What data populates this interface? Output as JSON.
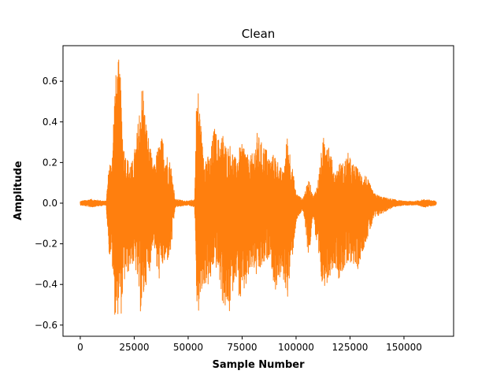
{
  "chart_data": {
    "type": "line",
    "title": "Clean",
    "xlabel": "Sample Number",
    "ylabel": "Amplitude",
    "xlim": [
      -8000,
      173000
    ],
    "ylim": [
      -0.655,
      0.775
    ],
    "xticks": [
      0,
      25000,
      50000,
      75000,
      100000,
      125000,
      150000
    ],
    "xtick_labels": [
      "0",
      "25000",
      "50000",
      "75000",
      "100000",
      "125000",
      "150000"
    ],
    "yticks": [
      -0.6,
      -0.4,
      -0.2,
      0.0,
      0.2,
      0.4,
      0.6
    ],
    "ytick_labels": [
      "−0.6",
      "−0.4",
      "−0.2",
      "0.0",
      "0.2",
      "0.4",
      "0.6"
    ],
    "grid": false,
    "legend": "none",
    "series": [
      {
        "color": "#ff7f0e",
        "x": [
          0,
          5000,
          12000,
          13500,
          14500,
          16000,
          17000,
          18000,
          19000,
          20000,
          21000,
          22000,
          24000,
          26000,
          28000,
          29000,
          30000,
          32000,
          34000,
          36000,
          38000,
          40000,
          42000,
          44000,
          50000,
          53000,
          54000,
          55000,
          56500,
          58000,
          60000,
          62000,
          64000,
          66000,
          68000,
          69000,
          70000,
          72000,
          74000,
          76000,
          78000,
          80000,
          82000,
          84000,
          86000,
          88000,
          90000,
          92000,
          94000,
          96000,
          98000,
          100000,
          103000,
          106000,
          108000,
          110000,
          112000,
          114000,
          116000,
          118000,
          120000,
          122000,
          124000,
          126000,
          128000,
          130000,
          132000,
          134000,
          136000,
          140000,
          145000,
          150000,
          155000,
          160000,
          165000
        ],
        "upper": [
          0.01,
          0.02,
          0.01,
          0.22,
          0.2,
          0.6,
          0.68,
          0.72,
          0.55,
          0.3,
          0.25,
          0.22,
          0.2,
          0.32,
          0.55,
          0.62,
          0.45,
          0.3,
          0.18,
          0.28,
          0.33,
          0.25,
          0.2,
          0.02,
          0.01,
          0.02,
          0.6,
          0.55,
          0.3,
          0.25,
          0.22,
          0.38,
          0.32,
          0.35,
          0.27,
          0.3,
          0.28,
          0.22,
          0.28,
          0.3,
          0.22,
          0.25,
          0.35,
          0.3,
          0.28,
          0.22,
          0.25,
          0.2,
          0.15,
          0.35,
          0.2,
          0.05,
          0.02,
          0.12,
          0.03,
          0.1,
          0.28,
          0.4,
          0.25,
          0.15,
          0.2,
          0.2,
          0.25,
          0.2,
          0.18,
          0.15,
          0.15,
          0.1,
          0.05,
          0.03,
          0.02,
          0.01,
          0.01,
          0.02,
          0.01
        ],
        "lower": [
          -0.01,
          -0.02,
          -0.01,
          -0.27,
          -0.25,
          -0.55,
          -0.59,
          -0.5,
          -0.55,
          -0.42,
          -0.37,
          -0.35,
          -0.3,
          -0.35,
          -0.55,
          -0.52,
          -0.42,
          -0.35,
          -0.18,
          -0.4,
          -0.32,
          -0.3,
          -0.25,
          -0.02,
          -0.01,
          -0.02,
          -0.53,
          -0.55,
          -0.45,
          -0.4,
          -0.42,
          -0.3,
          -0.35,
          -0.5,
          -0.55,
          -0.56,
          -0.48,
          -0.35,
          -0.5,
          -0.45,
          -0.38,
          -0.32,
          -0.38,
          -0.33,
          -0.3,
          -0.25,
          -0.45,
          -0.38,
          -0.38,
          -0.47,
          -0.3,
          -0.1,
          -0.03,
          -0.28,
          -0.05,
          -0.3,
          -0.42,
          -0.4,
          -0.35,
          -0.3,
          -0.38,
          -0.33,
          -0.33,
          -0.28,
          -0.35,
          -0.27,
          -0.2,
          -0.15,
          -0.08,
          -0.05,
          -0.02,
          -0.01,
          -0.01,
          -0.02,
          -0.01
        ]
      }
    ]
  }
}
